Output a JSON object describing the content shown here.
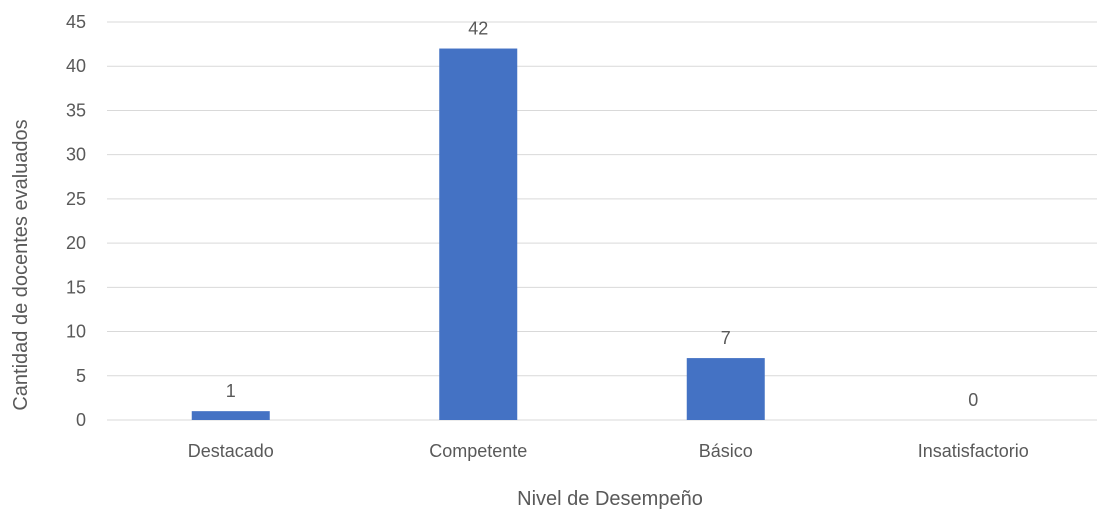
{
  "chart_data": {
    "type": "bar",
    "title": "",
    "xlabel": "Nivel de Desempeño",
    "ylabel": "Cantidad de docentes evaluados",
    "categories": [
      "Destacado",
      "Competente",
      "Básico",
      "Insatisfactorio"
    ],
    "values": [
      1,
      42,
      7,
      0
    ],
    "data_labels": [
      "1",
      "42",
      "7",
      "0"
    ],
    "ylim": [
      0,
      45
    ],
    "yticks": [
      0,
      5,
      10,
      15,
      20,
      25,
      30,
      35,
      40,
      45
    ],
    "ytick_labels": [
      "0",
      "5",
      "10",
      "15",
      "20",
      "25",
      "30",
      "35",
      "40",
      "45"
    ],
    "grid": true,
    "legend": "none",
    "colors": {
      "bar": "#4472C4",
      "grid": "#D9D9D9",
      "text": "#595959"
    }
  }
}
